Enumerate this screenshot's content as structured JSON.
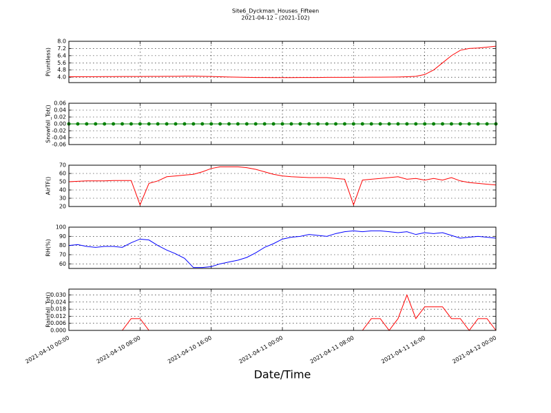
{
  "title": "Site6_Dyckman_Houses_Fifteen",
  "subtitle": "2021-04-12 - (2021-102)",
  "xlabel": "Date/Time",
  "xlim": [
    "2021-04-10 00:00",
    "2021-04-12 00:00"
  ],
  "xticks": [
    "2021-04-10 00:00",
    "2021-04-10 08:00",
    "2021-04-10 16:00",
    "2021-04-11 00:00",
    "2021-04-11 08:00",
    "2021-04-11 16:00",
    "2021-04-12 00:00"
  ],
  "grid": true,
  "x": [
    "2021-04-10 00:00",
    "2021-04-10 01:00",
    "2021-04-10 02:00",
    "2021-04-10 03:00",
    "2021-04-10 04:00",
    "2021-04-10 05:00",
    "2021-04-10 06:00",
    "2021-04-10 07:00",
    "2021-04-10 08:00",
    "2021-04-10 09:00",
    "2021-04-10 10:00",
    "2021-04-10 11:00",
    "2021-04-10 12:00",
    "2021-04-10 13:00",
    "2021-04-10 14:00",
    "2021-04-10 15:00",
    "2021-04-10 16:00",
    "2021-04-10 17:00",
    "2021-04-10 18:00",
    "2021-04-10 19:00",
    "2021-04-10 20:00",
    "2021-04-10 21:00",
    "2021-04-10 22:00",
    "2021-04-10 23:00",
    "2021-04-11 00:00",
    "2021-04-11 01:00",
    "2021-04-11 02:00",
    "2021-04-11 03:00",
    "2021-04-11 04:00",
    "2021-04-11 05:00",
    "2021-04-11 06:00",
    "2021-04-11 07:00",
    "2021-04-11 08:00",
    "2021-04-11 09:00",
    "2021-04-11 10:00",
    "2021-04-11 11:00",
    "2021-04-11 12:00",
    "2021-04-11 13:00",
    "2021-04-11 14:00",
    "2021-04-11 15:00",
    "2021-04-11 16:00",
    "2021-04-11 17:00",
    "2021-04-11 18:00",
    "2021-04-11 19:00",
    "2021-04-11 20:00",
    "2021-04-11 21:00",
    "2021-04-11 22:00",
    "2021-04-11 23:00",
    "2021-04-12 00:00"
  ],
  "chart_data": [
    {
      "type": "line",
      "ylabel": "P(unitless)",
      "color": "#ff0000",
      "ylim": [
        3.4,
        8
      ],
      "yticks": [
        {
          "value": 4,
          "label": "4.0"
        },
        4.8,
        5.6,
        6.4,
        7.2,
        {
          "value": 8,
          "label": "8.0"
        }
      ],
      "values": [
        4.05,
        4.05,
        4.06,
        4.06,
        4.07,
        4.07,
        4.08,
        4.08,
        4.08,
        4.09,
        4.09,
        4.1,
        4.1,
        4.12,
        4.12,
        4.1,
        4.08,
        4.05,
        4.02,
        4.0,
        3.98,
        3.97,
        3.97,
        3.96,
        3.96,
        3.96,
        3.97,
        3.97,
        3.97,
        3.98,
        3.98,
        3.98,
        3.99,
        3.99,
        4.0,
        4.0,
        4.01,
        4.02,
        4.05,
        4.1,
        4.3,
        4.8,
        5.6,
        6.4,
        7.0,
        7.2,
        7.25,
        7.35,
        7.45
      ]
    },
    {
      "type": "line",
      "ylabel": "Snowfall_Tot()",
      "color": "#008000",
      "markers": true,
      "ylim": [
        -0.06,
        0.06
      ],
      "yticks": [
        -0.06,
        -0.04,
        -0.02,
        {
          "value": 0,
          "label": "0.00"
        },
        0.02,
        0.04,
        0.06
      ],
      "values": [
        0,
        0,
        0,
        0,
        0,
        0,
        0,
        0,
        0,
        0,
        0,
        0,
        0,
        0,
        0,
        0,
        0,
        0,
        0,
        0,
        0,
        0,
        0,
        0,
        0,
        0,
        0,
        0,
        0,
        0,
        0,
        0,
        0,
        0,
        0,
        0,
        0,
        0,
        0,
        0,
        0,
        0,
        0,
        0,
        0,
        0,
        0,
        0,
        0
      ]
    },
    {
      "type": "line",
      "ylabel": "AirTF()",
      "color": "#ff0000",
      "ylim": [
        20,
        70
      ],
      "yticks": [
        20,
        30,
        40,
        50,
        60,
        70
      ],
      "values": [
        50,
        50.5,
        51,
        51,
        51,
        51.5,
        51.5,
        51.5,
        22,
        48,
        51,
        56,
        57,
        58,
        59,
        62,
        66,
        68,
        68,
        68,
        67,
        65,
        62,
        59,
        57,
        56,
        55.5,
        55,
        55,
        55,
        54,
        53,
        22,
        52,
        53,
        54,
        55,
        56,
        53,
        54,
        52,
        54,
        52,
        55,
        51,
        49,
        48,
        47,
        46
      ]
    },
    {
      "type": "line",
      "ylabel": "RH(%)",
      "color": "#0000ff",
      "ylim": [
        55,
        100
      ],
      "yticks": [
        60,
        70,
        80,
        90,
        100
      ],
      "values": [
        80,
        81,
        79,
        78,
        79,
        79,
        78,
        83,
        87,
        86,
        80,
        75,
        71,
        66,
        56,
        56,
        57,
        60,
        62,
        64,
        67,
        72,
        78,
        82,
        87,
        89,
        90,
        92,
        91,
        90,
        93,
        95,
        96,
        95,
        96,
        96,
        95,
        94,
        95,
        92,
        94,
        93,
        94,
        91,
        88,
        89,
        90,
        89,
        88
      ]
    },
    {
      "type": "line",
      "ylabel": "Rainfall_Tot()",
      "color": "#ff0000",
      "ylim": [
        0,
        0.035
      ],
      "yticks": [
        {
          "value": 0,
          "label": "0.000"
        },
        0.006,
        0.012,
        0.018,
        0.024,
        {
          "value": 0.03,
          "label": "0.030"
        }
      ],
      "values": [
        0,
        0,
        0,
        0,
        0,
        0,
        0,
        0.01,
        0.01,
        0,
        0,
        0,
        0,
        0,
        0,
        0,
        0,
        0,
        0,
        0,
        0,
        0,
        0,
        0,
        0,
        0,
        0,
        0,
        0,
        0,
        0,
        0,
        0,
        0,
        0.01,
        0.01,
        0,
        0.01,
        0.03,
        0.01,
        0.02,
        0.02,
        0.02,
        0.01,
        0.01,
        0,
        0.01,
        0.01,
        0
      ]
    }
  ]
}
